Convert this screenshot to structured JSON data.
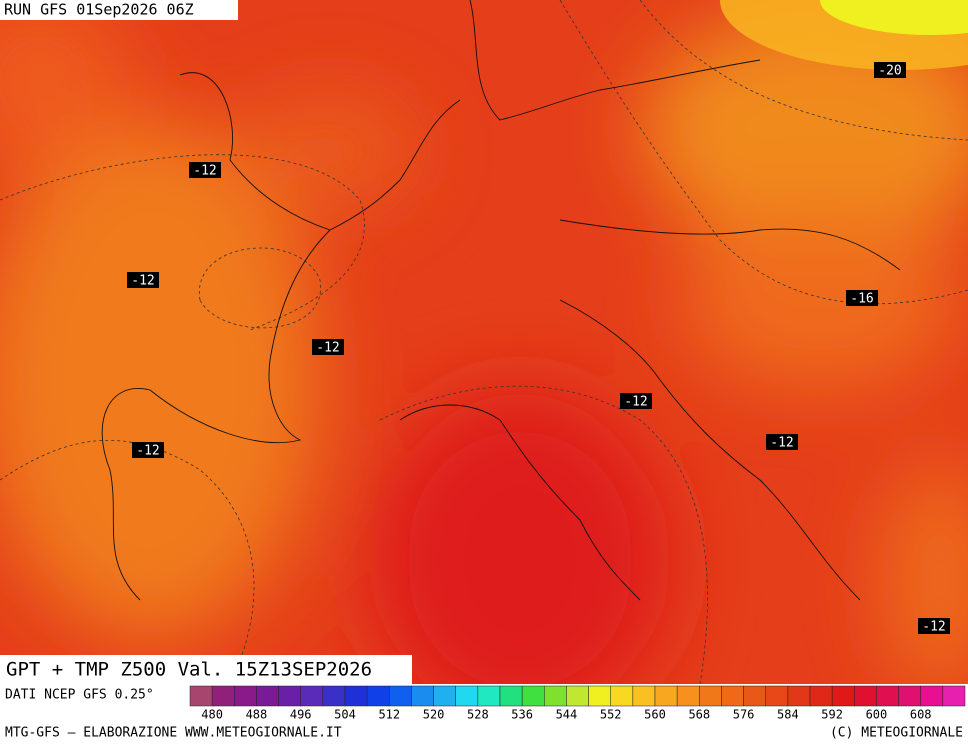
{
  "header": {
    "run": "RUN GFS 01Sep2026 06Z"
  },
  "map": {
    "title": "GPT + TMP Z500 Val. 15Z13SEP2026",
    "temperature_labels": [
      "-20",
      "-12",
      "-12",
      "-12",
      "-16",
      "-12",
      "-12",
      "-12",
      "-12"
    ]
  },
  "colorbar": {
    "source": "DATI NCEP GFS 0.25°",
    "ticks": [
      480,
      488,
      496,
      504,
      512,
      520,
      528,
      536,
      544,
      552,
      560,
      568,
      576,
      584,
      592,
      600,
      608
    ],
    "colors": [
      "#a8456e",
      "#90207a",
      "#8a1a8a",
      "#7a1a96",
      "#6a20a6",
      "#5a2ab8",
      "#3a30c8",
      "#2030d8",
      "#1040e8",
      "#1060f0",
      "#1a8cf0",
      "#20b0f0",
      "#20d8f0",
      "#20e8c0",
      "#20e080",
      "#40e040",
      "#80e030",
      "#c0e830",
      "#f0f020",
      "#f8d820",
      "#f8c020",
      "#f8a820",
      "#f89020",
      "#f07818",
      "#f06818",
      "#e85818",
      "#e84818",
      "#e03818",
      "#e02818",
      "#e01818",
      "#e01030",
      "#e01050",
      "#e01070",
      "#e81090",
      "#e820b0"
    ]
  },
  "footer": {
    "left": "MTG-GFS — ELABORAZIONE WWW.METEOGIORNALE.IT",
    "right": "(C) METEOGIORNALE"
  }
}
